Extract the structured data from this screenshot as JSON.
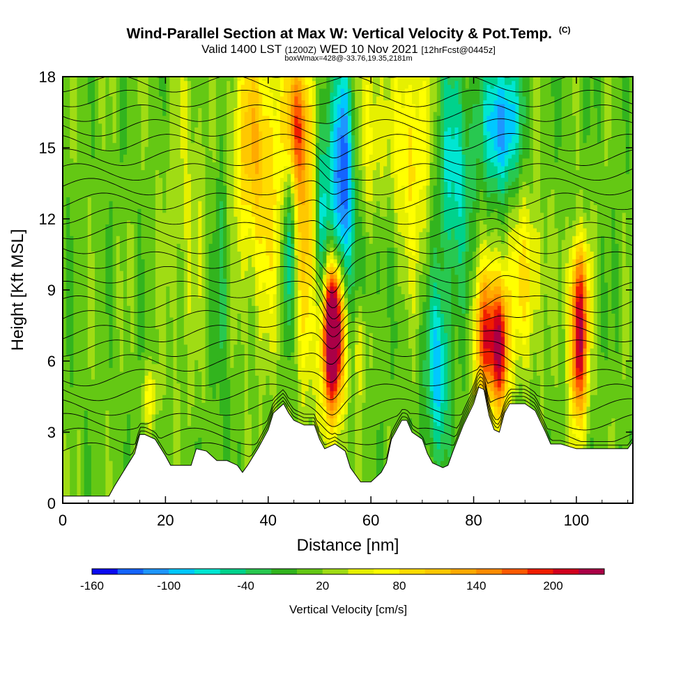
{
  "chart_data": {
    "type": "heatmap",
    "title": "Wind-Parallel Section at Max W: Vertical Velocity & Pot.Temp.",
    "title_mark": "(C)",
    "subtitle_main": "Valid 1400 LST",
    "subtitle_z": "(1200Z)",
    "subtitle_date": "WED 10 Nov 2021",
    "subtitle_fcst": "[12hrFcst@0445z]",
    "note": "boxWmax=428@-33.76,19.35,2181m",
    "xlabel": "Distance [nm]",
    "ylabel": "Height [Kft MSL]",
    "xlim": [
      0,
      111
    ],
    "ylim": [
      0,
      18
    ],
    "x_ticks": [
      "0",
      "20",
      "40",
      "60",
      "80",
      "100"
    ],
    "y_ticks": [
      "0",
      "3",
      "6",
      "9",
      "12",
      "15",
      "18"
    ],
    "x_tick_values": [
      0,
      20,
      40,
      60,
      80,
      100
    ],
    "y_tick_values": [
      0,
      3,
      6,
      9,
      12,
      15,
      18
    ],
    "colorbar": {
      "label": "Vertical Velocity [cm/s]",
      "tick_labels": [
        "-160",
        "-100",
        "-40",
        "20",
        "80",
        "140",
        "200"
      ],
      "tick_values": [
        -160,
        -100,
        -40,
        20,
        80,
        140,
        200
      ],
      "bounds": [
        -160,
        -140,
        -120,
        -100,
        -80,
        -60,
        -40,
        -20,
        0,
        20,
        40,
        60,
        80,
        100,
        120,
        140,
        160,
        180,
        200,
        220,
        240
      ],
      "colors": [
        "#0a0af0",
        "#1464ff",
        "#1e96ff",
        "#00c8ff",
        "#00e6d2",
        "#00d28c",
        "#28c850",
        "#32b41e",
        "#64c814",
        "#a0dc14",
        "#e6f000",
        "#ffff00",
        "#ffdc00",
        "#ffc800",
        "#ffaa00",
        "#ff8c00",
        "#ff5a00",
        "#f01e00",
        "#d2001e",
        "#aa0046"
      ]
    },
    "background_value": 10,
    "terrain": {
      "x": [
        0,
        9,
        10,
        12,
        14,
        15,
        16,
        18,
        20,
        21,
        23,
        25,
        26,
        28,
        30,
        32,
        34,
        35,
        36,
        38,
        40,
        41,
        43,
        44,
        45,
        47,
        49,
        50,
        51,
        53,
        55,
        56,
        58,
        60,
        62,
        63,
        64,
        66,
        67,
        68,
        70,
        71,
        72,
        73,
        74,
        75,
        76,
        78,
        80,
        81,
        82,
        83,
        84,
        85,
        86,
        87,
        88,
        90,
        92,
        94,
        95,
        97,
        100,
        105,
        110,
        111
      ],
      "kft": [
        0.3,
        0.3,
        0.7,
        1.4,
        2.1,
        2.9,
        2.9,
        2.7,
        2.0,
        1.6,
        1.6,
        1.6,
        2.3,
        2.2,
        1.8,
        1.8,
        1.6,
        1.3,
        1.6,
        2.3,
        3.1,
        3.8,
        4.2,
        3.8,
        3.5,
        3.3,
        3.3,
        2.7,
        2.3,
        2.5,
        2.2,
        1.5,
        0.9,
        0.9,
        1.3,
        1.7,
        2.7,
        3.5,
        3.5,
        3.0,
        2.7,
        2.1,
        1.7,
        1.6,
        1.5,
        1.6,
        2.2,
        3.3,
        4.2,
        4.9,
        4.8,
        3.7,
        3.1,
        3.0,
        3.8,
        4.2,
        4.2,
        4.2,
        3.9,
        3.0,
        2.5,
        2.5,
        2.3,
        2.3,
        2.3,
        2.6
      ]
    },
    "updrafts": [
      {
        "x": 52.5,
        "z": 6.5,
        "sx": 1.6,
        "sz": 2.2,
        "w": 240
      },
      {
        "x": 52.5,
        "z": 8.2,
        "sx": 1.3,
        "sz": 1.6,
        "w": 140
      },
      {
        "x": 82.3,
        "z": 7.0,
        "sx": 1.5,
        "sz": 2.0,
        "w": 170
      },
      {
        "x": 85.2,
        "z": 6.6,
        "sx": 1.2,
        "sz": 2.0,
        "w": 200
      },
      {
        "x": 100.5,
        "z": 6.6,
        "sx": 1.2,
        "sz": 2.3,
        "w": 215
      },
      {
        "x": 100.5,
        "z": 9.5,
        "sx": 1.4,
        "sz": 1.4,
        "w": 70
      },
      {
        "x": 90.0,
        "z": 9.5,
        "sx": 2.6,
        "sz": 2.5,
        "w": 70
      },
      {
        "x": 40.0,
        "z": 13.5,
        "sx": 3.5,
        "sz": 4.5,
        "w": 70
      },
      {
        "x": 36.0,
        "z": 15.5,
        "sx": 2.5,
        "sz": 3.0,
        "w": 65
      },
      {
        "x": 47.5,
        "z": 12.0,
        "sx": 1.6,
        "sz": 5.0,
        "w": 85
      },
      {
        "x": 45.5,
        "z": 16.0,
        "sx": 1.5,
        "sz": 2.0,
        "w": 130
      },
      {
        "x": 68.0,
        "z": 15.0,
        "sx": 3.0,
        "sz": 3.5,
        "w": 75
      },
      {
        "x": 60.0,
        "z": 15.0,
        "sx": 2.0,
        "sz": 3.5,
        "w": 60
      },
      {
        "x": 58.0,
        "z": 6.5,
        "sx": 0.8,
        "sz": 1.5,
        "w": 55
      },
      {
        "x": 17.0,
        "z": 4.5,
        "sx": 1.0,
        "sz": 0.9,
        "w": 60
      },
      {
        "x": 24.0,
        "z": 12.5,
        "sx": 3.0,
        "sz": 5.0,
        "w": 30
      }
    ],
    "downdrafts": [
      {
        "x": 54.5,
        "z": 13.5,
        "sx": 1.6,
        "sz": 3.5,
        "w": -150
      },
      {
        "x": 50.5,
        "z": 12.0,
        "sx": 1.1,
        "sz": 4.0,
        "w": -80
      },
      {
        "x": 44.0,
        "z": 11.0,
        "sx": 0.9,
        "sz": 3.0,
        "w": -90
      },
      {
        "x": 73.0,
        "z": 5.5,
        "sx": 1.6,
        "sz": 2.5,
        "w": -100
      },
      {
        "x": 76.0,
        "z": 14.0,
        "sx": 2.5,
        "sz": 3.5,
        "w": -80
      },
      {
        "x": 85.5,
        "z": 16.0,
        "sx": 2.5,
        "sz": 2.0,
        "w": -130
      },
      {
        "x": 61.0,
        "z": 11.0,
        "sx": 2.0,
        "sz": 2.5,
        "w": -40
      },
      {
        "x": 31.0,
        "z": 10.0,
        "sx": 1.2,
        "sz": 5.0,
        "w": -35
      }
    ],
    "theta_contours": {
      "count": 28,
      "level_spacing_kft": 0.62,
      "first_level_kft": 2.2
    }
  }
}
